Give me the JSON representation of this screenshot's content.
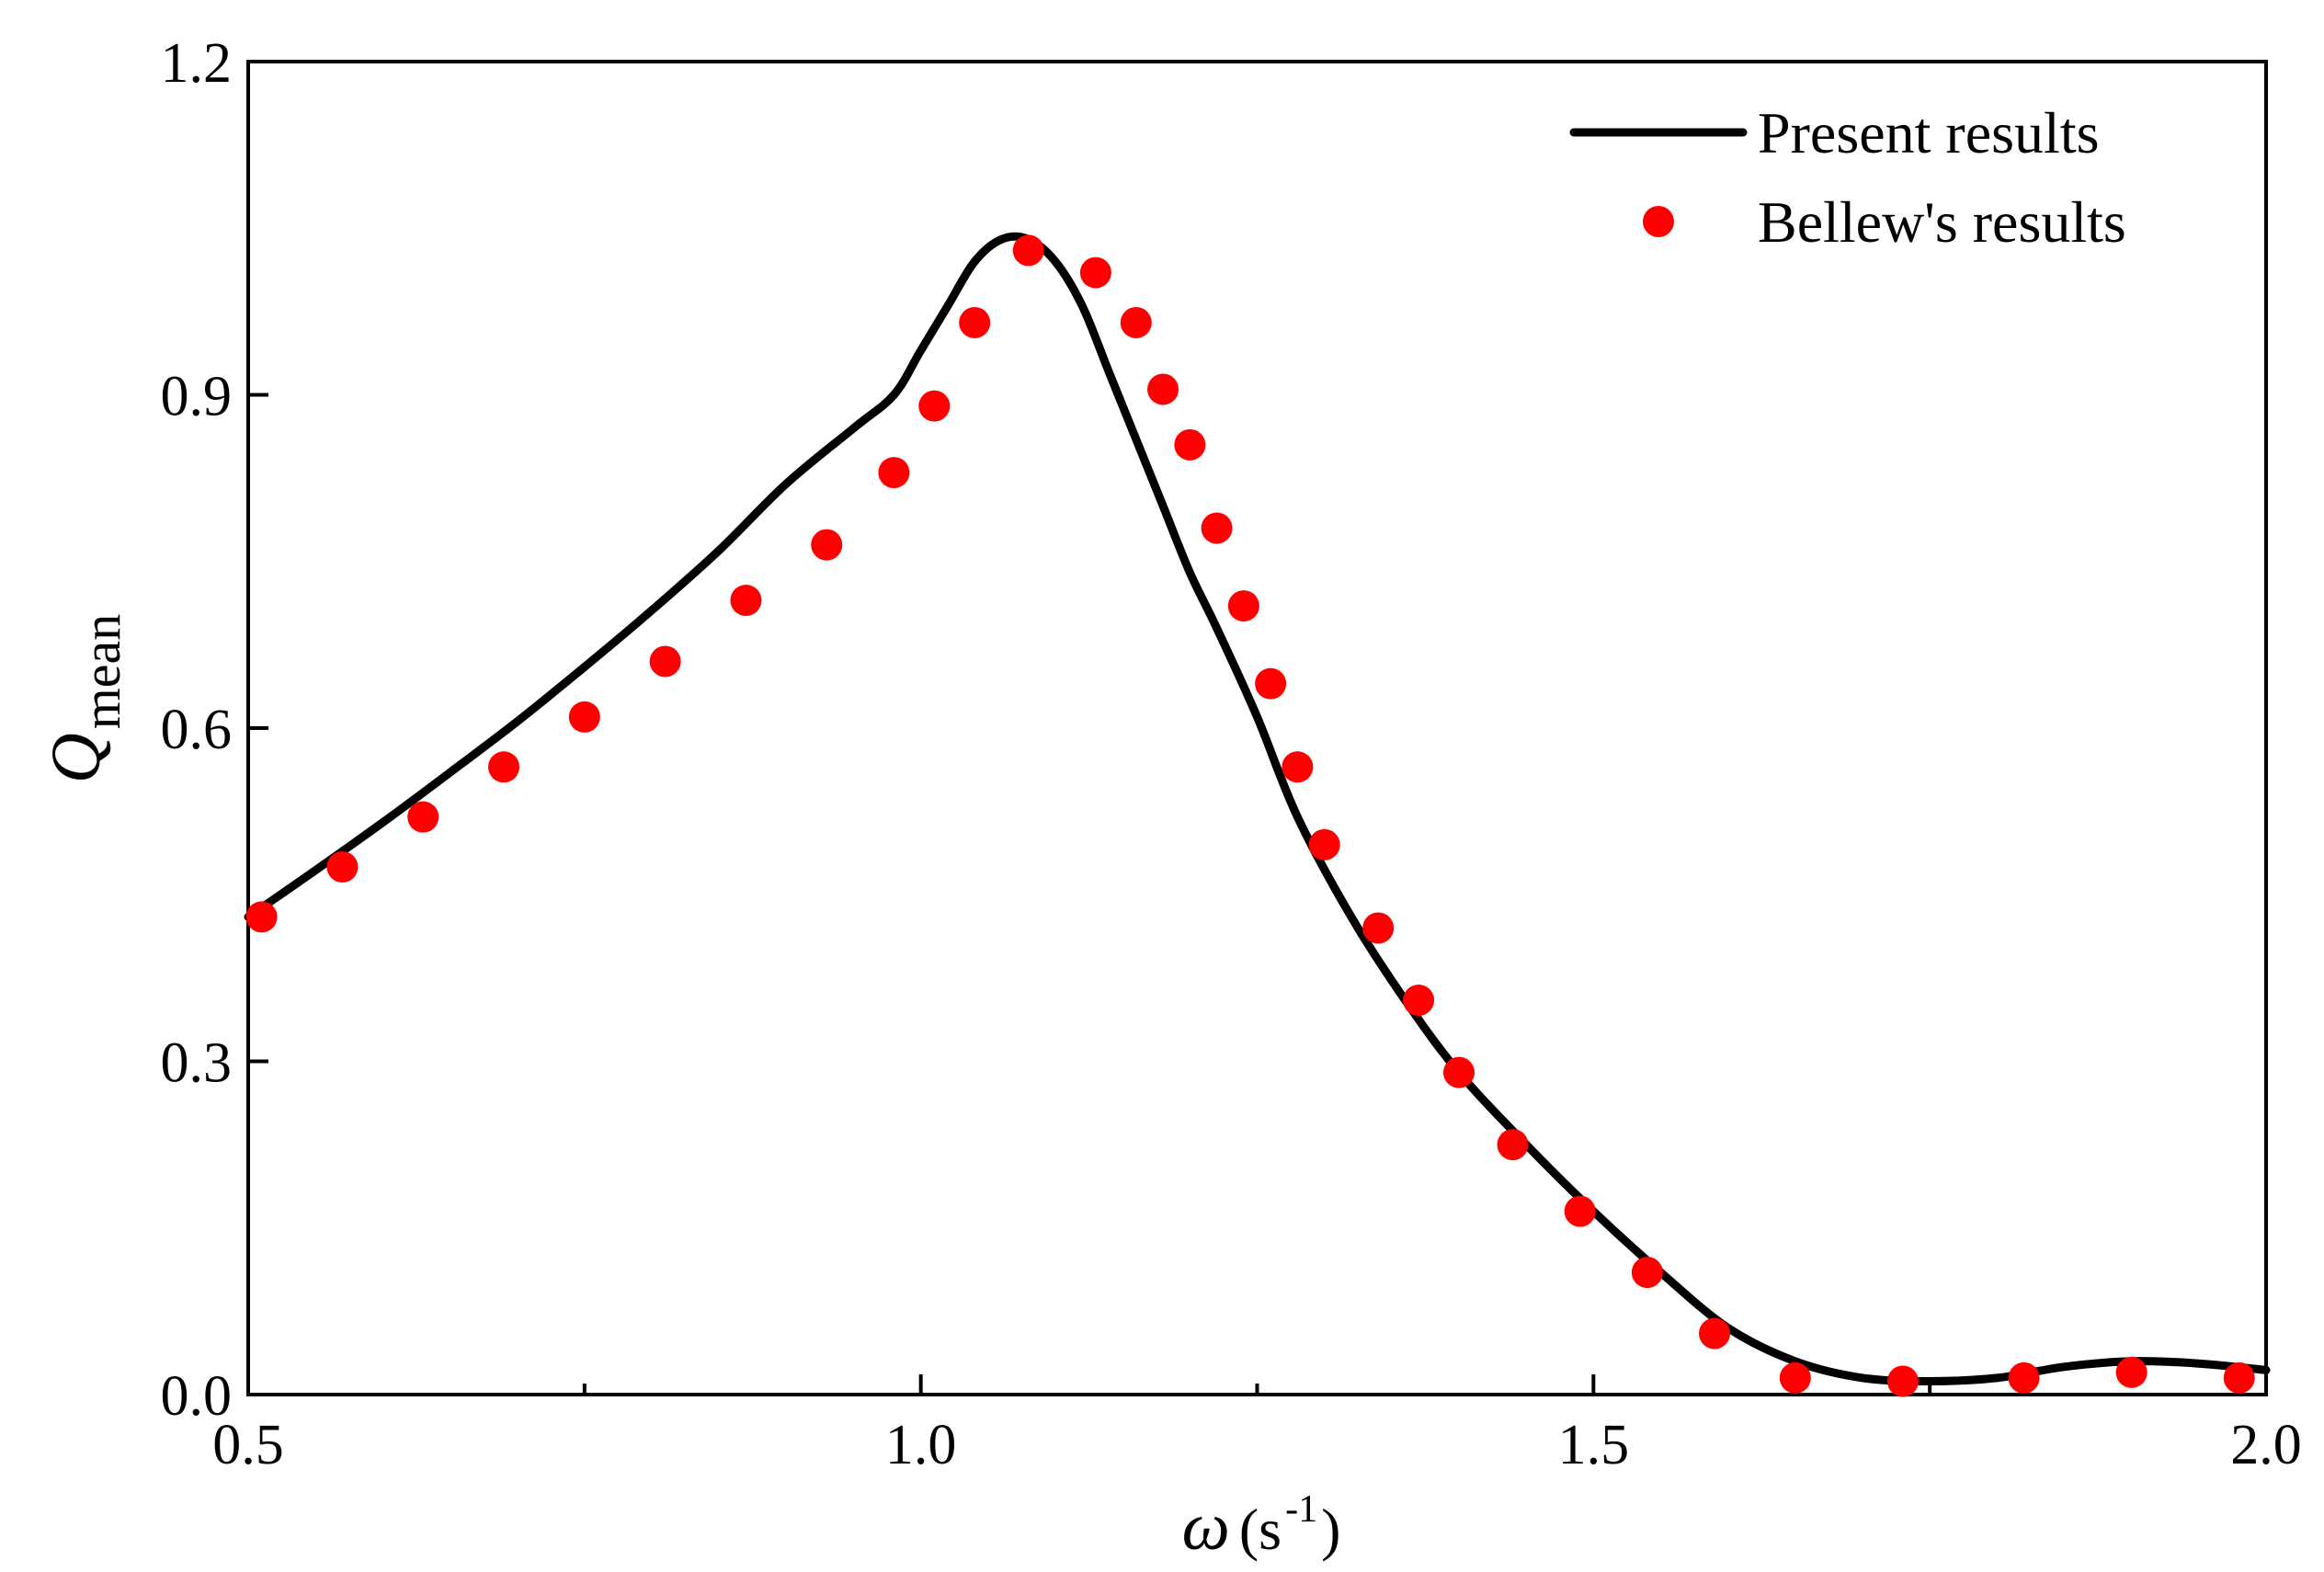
{
  "chart_data": {
    "type": "line",
    "title": "",
    "xlabel": {
      "symbol": "ω",
      "unit_open": "(s",
      "unit_exp": "-1",
      "unit_close": ")"
    },
    "ylabel": {
      "symbol": "Q",
      "subscript": "mean"
    },
    "xlim": [
      0.5,
      2.0
    ],
    "ylim": [
      0.0,
      1.2
    ],
    "x_ticks": [
      0.5,
      1.0,
      1.5,
      2.0
    ],
    "x_tick_labels": [
      "0.5",
      "1.0",
      "1.5",
      "2.0"
    ],
    "x_minor_ticks": [
      0.75,
      1.25,
      1.75
    ],
    "y_ticks": [
      0.0,
      0.3,
      0.6,
      0.9,
      1.2
    ],
    "y_tick_labels": [
      "0.0",
      "0.3",
      "0.6",
      "0.9",
      "1.2"
    ],
    "grid": false,
    "legend_position": "top-right",
    "series": [
      {
        "name": "Present results",
        "style": "line",
        "color": "#000000",
        "x": [
          0.5,
          0.55,
          0.6,
          0.65,
          0.7,
          0.75,
          0.8,
          0.85,
          0.9,
          0.95,
          0.98,
          1.0,
          1.02,
          1.04,
          1.06,
          1.08,
          1.1,
          1.12,
          1.14,
          1.16,
          1.18,
          1.2,
          1.22,
          1.25,
          1.28,
          1.32,
          1.36,
          1.4,
          1.45,
          1.5,
          1.55,
          1.6,
          1.65,
          1.7,
          1.75,
          1.8,
          1.85,
          1.9,
          1.95,
          2.0
        ],
        "y": [
          0.43,
          0.472,
          0.515,
          0.56,
          0.606,
          0.655,
          0.706,
          0.76,
          0.82,
          0.87,
          0.9,
          0.94,
          0.98,
          1.02,
          1.04,
          1.04,
          1.02,
          0.98,
          0.92,
          0.86,
          0.8,
          0.74,
          0.69,
          0.61,
          0.52,
          0.43,
          0.355,
          0.29,
          0.225,
          0.165,
          0.11,
          0.06,
          0.03,
          0.015,
          0.012,
          0.015,
          0.025,
          0.03,
          0.028,
          0.022
        ]
      },
      {
        "name": "Bellew's results",
        "style": "markers",
        "color": "#ff0000",
        "x": [
          0.51,
          0.57,
          0.63,
          0.69,
          0.75,
          0.81,
          0.87,
          0.93,
          0.98,
          1.01,
          1.04,
          1.08,
          1.13,
          1.16,
          1.18,
          1.2,
          1.22,
          1.24,
          1.26,
          1.28,
          1.3,
          1.34,
          1.37,
          1.4,
          1.44,
          1.49,
          1.54,
          1.59,
          1.65,
          1.73,
          1.82,
          1.9,
          1.98
        ],
        "y": [
          0.43,
          0.475,
          0.52,
          0.565,
          0.61,
          0.66,
          0.715,
          0.765,
          0.83,
          0.89,
          0.965,
          1.03,
          1.01,
          0.965,
          0.905,
          0.855,
          0.78,
          0.71,
          0.64,
          0.565,
          0.495,
          0.42,
          0.355,
          0.29,
          0.225,
          0.165,
          0.11,
          0.055,
          0.015,
          0.012,
          0.015,
          0.02,
          0.015
        ]
      }
    ]
  }
}
